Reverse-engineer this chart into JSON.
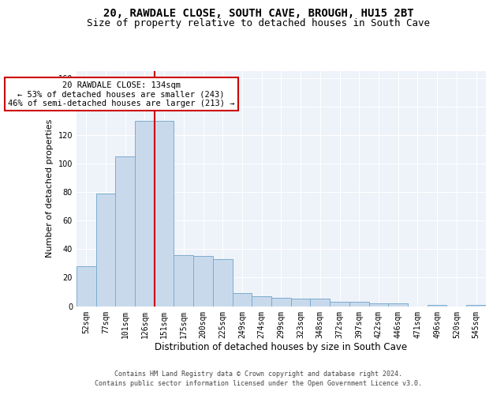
{
  "title_line1": "20, RAWDALE CLOSE, SOUTH CAVE, BROUGH, HU15 2BT",
  "title_line2": "Size of property relative to detached houses in South Cave",
  "xlabel": "Distribution of detached houses by size in South Cave",
  "ylabel": "Number of detached properties",
  "categories": [
    "52sqm",
    "77sqm",
    "101sqm",
    "126sqm",
    "151sqm",
    "175sqm",
    "200sqm",
    "225sqm",
    "249sqm",
    "274sqm",
    "299sqm",
    "323sqm",
    "348sqm",
    "372sqm",
    "397sqm",
    "422sqm",
    "446sqm",
    "471sqm",
    "496sqm",
    "520sqm",
    "545sqm"
  ],
  "values": [
    28,
    79,
    105,
    130,
    130,
    36,
    35,
    33,
    9,
    7,
    6,
    5,
    5,
    3,
    3,
    2,
    2,
    0,
    1,
    0,
    1
  ],
  "bar_color": "#c9d9ec",
  "bar_edge_color": "#7aadcf",
  "vline_x_idx": 3,
  "vline_color": "#cc0000",
  "annotation_text": "20 RAWDALE CLOSE: 134sqm\n← 53% of detached houses are smaller (243)\n46% of semi-detached houses are larger (213) →",
  "annotation_box_color": "#ffffff",
  "annotation_box_edge_color": "#cc0000",
  "ylim": [
    0,
    165
  ],
  "yticks": [
    0,
    20,
    40,
    60,
    80,
    100,
    120,
    140,
    160
  ],
  "footer_line1": "Contains HM Land Registry data © Crown copyright and database right 2024.",
  "footer_line2": "Contains public sector information licensed under the Open Government Licence v3.0.",
  "bg_color": "#eef2f9",
  "fig_bg_color": "#ffffff",
  "grid_color": "#ffffff",
  "title1_fontsize": 10,
  "title2_fontsize": 9,
  "ylabel_fontsize": 8,
  "xlabel_fontsize": 8.5,
  "tick_fontsize": 7,
  "footer_fontsize": 6,
  "annot_fontsize": 7.5
}
